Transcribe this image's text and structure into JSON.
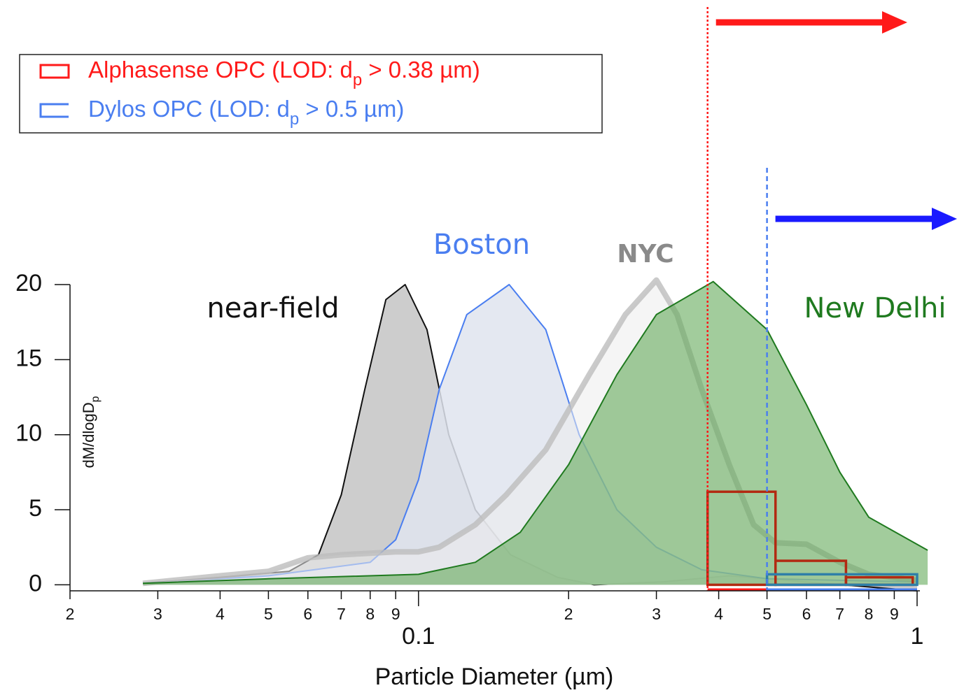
{
  "chart_data": {
    "type": "area",
    "x_label": "Particle Diameter (µm)",
    "y_label": [
      "dM/dlogD",
      "p"
    ],
    "xscale": "log",
    "xlim": [
      0.02,
      1
    ],
    "ylim": [
      -0.4,
      20
    ],
    "yticks": [
      0,
      5,
      10,
      15,
      20
    ],
    "xticks": [
      {
        "value": 0.02,
        "label": "2"
      },
      {
        "value": 0.03,
        "label": "3"
      },
      {
        "value": 0.04,
        "label": "4"
      },
      {
        "value": 0.05,
        "label": "5"
      },
      {
        "value": 0.06,
        "label": "6"
      },
      {
        "value": 0.07,
        "label": "7"
      },
      {
        "value": 0.08,
        "label": "8"
      },
      {
        "value": 0.09,
        "label": "9"
      },
      0.1,
      {
        "value": 0.2,
        "label": "2"
      },
      {
        "value": 0.3,
        "label": "3"
      },
      {
        "value": 0.4,
        "label": "4"
      },
      {
        "value": 0.5,
        "label": "5"
      },
      {
        "value": 0.6,
        "label": "6"
      },
      {
        "value": 0.7,
        "label": "7"
      },
      {
        "value": 0.8,
        "label": "8"
      },
      {
        "value": 0.9,
        "label": "9"
      },
      1
    ],
    "series": [
      {
        "name": "near-field",
        "color": "#111111",
        "fill": "#c4c4c4",
        "x": [
          0.028,
          0.04,
          0.055,
          0.063,
          0.07,
          0.078,
          0.086,
          0.094,
          0.104,
          0.115,
          0.13,
          0.153,
          0.19,
          0.225,
          0.31,
          0.42,
          0.5,
          1.0
        ],
        "values": [
          0.1,
          0.5,
          0.9,
          2,
          6,
          13,
          19,
          20,
          17,
          10,
          5,
          2,
          0.5,
          0,
          0.2,
          0.6,
          0.4,
          -0.4
        ]
      },
      {
        "name": "Boston",
        "color": "#4a7ef0",
        "fill": "#dfe4ee",
        "x": [
          0.028,
          0.05,
          0.08,
          0.09,
          0.1,
          0.11,
          0.125,
          0.152,
          0.18,
          0.21,
          0.25,
          0.3,
          0.37,
          0.5,
          1.0
        ],
        "values": [
          0.1,
          0.6,
          1.5,
          3,
          7,
          13,
          18,
          20,
          17,
          10,
          5,
          2.5,
          1,
          0.4,
          0.2
        ]
      },
      {
        "name": "NYC",
        "color": "#bdbdbd",
        "fill": "#ececec",
        "x": [
          0.028,
          0.04,
          0.05,
          0.06,
          0.07,
          0.09,
          0.1,
          0.11,
          0.13,
          0.15,
          0.18,
          0.22,
          0.26,
          0.3,
          0.33,
          0.37,
          0.42,
          0.47,
          0.52,
          0.6,
          0.7,
          0.8,
          1.0
        ],
        "values": [
          0.1,
          0.6,
          0.9,
          1.8,
          2,
          2.2,
          2.2,
          2.5,
          4,
          6,
          9,
          14,
          18,
          20.3,
          18,
          13,
          8,
          4,
          2.8,
          2.7,
          1.5,
          0.7,
          0.3
        ]
      },
      {
        "name": "New Delhi",
        "color": "#1f7a1f",
        "fill": "#64aa5a",
        "x": [
          0.028,
          0.05,
          0.1,
          0.13,
          0.16,
          0.2,
          0.25,
          0.3,
          0.39,
          0.5,
          0.6,
          0.7,
          0.8,
          1.05
        ],
        "values": [
          0.1,
          0.4,
          0.7,
          1.5,
          3.5,
          8,
          14,
          18,
          20.2,
          17,
          12,
          7.5,
          4.5,
          2.3
        ]
      }
    ],
    "instruments": [
      {
        "legend_label": [
          "Alphasense OPC  (LOD: d",
          "p",
          " > 0.38 µm)"
        ],
        "color": "#ff1a1a",
        "bar_color": "#b22a12",
        "lod": 0.38,
        "bins": [
          0.38,
          0.52,
          0.72,
          0.98
        ],
        "values": [
          6.2,
          1.6,
          0.5
        ]
      },
      {
        "legend_label": [
          "Dylos OPC (LOD: d",
          "p",
          " > 0.5 µm)"
        ],
        "color": "#4a7ef0",
        "bar_color": "#2f7fa8",
        "lod": 0.5,
        "bins": [
          0.5,
          1.0
        ],
        "values": [
          0.7
        ]
      }
    ]
  }
}
